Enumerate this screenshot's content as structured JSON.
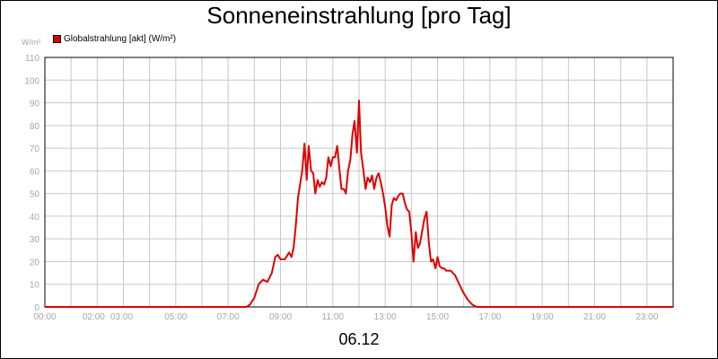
{
  "chart_data": {
    "type": "line",
    "title": "Sonneneinstrahlung [pro Tag]",
    "ylabel": "W/m²",
    "date_label": "06.12",
    "ylim": [
      0,
      110
    ],
    "xlim": [
      0,
      24
    ],
    "y_ticks": [
      0,
      10,
      20,
      30,
      40,
      50,
      60,
      70,
      80,
      90,
      100,
      110
    ],
    "x_ticks": [
      {
        "hour": 0,
        "label": "00:00"
      },
      {
        "hour": 2,
        "label": "02:00"
      },
      {
        "hour": 3,
        "label": "03:00"
      },
      {
        "hour": 5,
        "label": "05:00"
      },
      {
        "hour": 7,
        "label": "07:00"
      },
      {
        "hour": 9,
        "label": "09:00"
      },
      {
        "hour": 11,
        "label": "11:00"
      },
      {
        "hour": 13,
        "label": "13:00"
      },
      {
        "hour": 15,
        "label": "15:00"
      },
      {
        "hour": 17,
        "label": "17:00"
      },
      {
        "hour": 19,
        "label": "19:00"
      },
      {
        "hour": 21,
        "label": "21:00"
      },
      {
        "hour": 23,
        "label": "23:00"
      }
    ],
    "grid": true,
    "legend_position": "top-left",
    "series": [
      {
        "name": "Globalstrahlung [akt] (W/m²)",
        "color": "#e00000",
        "x": [
          0,
          7.7,
          7.83,
          8.0,
          8.17,
          8.33,
          8.5,
          8.67,
          8.8,
          8.9,
          9.0,
          9.17,
          9.33,
          9.42,
          9.5,
          9.58,
          9.67,
          9.83,
          9.92,
          10.0,
          10.08,
          10.17,
          10.25,
          10.33,
          10.42,
          10.5,
          10.58,
          10.67,
          10.75,
          10.83,
          10.92,
          11.0,
          11.08,
          11.17,
          11.25,
          11.33,
          11.42,
          11.5,
          11.58,
          11.67,
          11.75,
          11.83,
          11.92,
          12.0,
          12.08,
          12.17,
          12.25,
          12.33,
          12.42,
          12.5,
          12.58,
          12.67,
          12.75,
          12.83,
          12.92,
          13.0,
          13.08,
          13.17,
          13.25,
          13.33,
          13.42,
          13.5,
          13.58,
          13.67,
          13.75,
          13.83,
          13.92,
          14.0,
          14.08,
          14.17,
          14.25,
          14.33,
          14.42,
          14.5,
          14.58,
          14.67,
          14.75,
          14.83,
          14.92,
          15.0,
          15.08,
          15.17,
          15.25,
          15.33,
          15.42,
          15.5,
          15.67,
          15.83,
          16.0,
          16.17,
          16.33,
          16.5,
          16.67,
          16.83,
          17.0,
          24
        ],
        "y": [
          0,
          0,
          1,
          4,
          10,
          12,
          11,
          15,
          22,
          23,
          21,
          21,
          24,
          22,
          26,
          35,
          48,
          60,
          72,
          56,
          71,
          60,
          59,
          50,
          56,
          53,
          55,
          54,
          57,
          66,
          62,
          66,
          66,
          71,
          61,
          52,
          52,
          50,
          60,
          65,
          76,
          82,
          68,
          91,
          68,
          60,
          52,
          57,
          55,
          58,
          52,
          57,
          59,
          55,
          50,
          44,
          36,
          31,
          45,
          48,
          47,
          49,
          50,
          50,
          46,
          43,
          42,
          33,
          20,
          33,
          26,
          28,
          34,
          39,
          42,
          28,
          20,
          21,
          17,
          22,
          18,
          17,
          17,
          16,
          16,
          16,
          14,
          10,
          6,
          3,
          1,
          0,
          0,
          0,
          0,
          0
        ]
      }
    ]
  }
}
